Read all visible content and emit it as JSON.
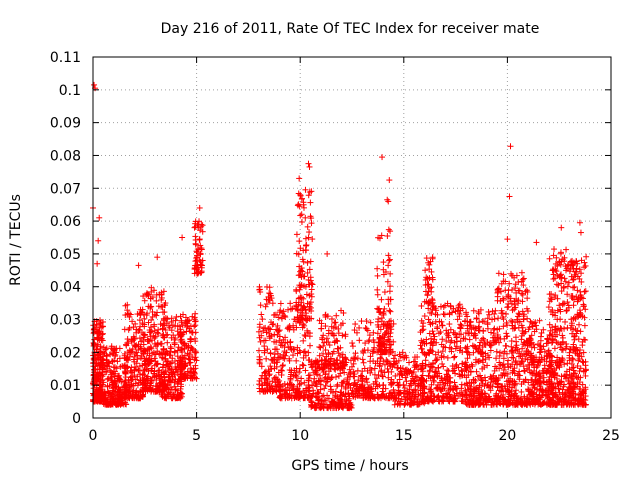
{
  "chart_data": {
    "type": "scatter",
    "title": "Day 216 of 2011, Rate Of TEC Index for receiver mate",
    "xlabel": "GPS time / hours",
    "ylabel": "ROTI / TECUs",
    "xlim": [
      0,
      25
    ],
    "ylim": [
      0,
      0.11
    ],
    "x_ticks": [
      0,
      5,
      10,
      15,
      20,
      25
    ],
    "x_tick_labels": [
      "0",
      "5",
      "10",
      "15",
      "20",
      "25"
    ],
    "y_ticks": [
      0,
      0.01,
      0.02,
      0.03,
      0.04,
      0.05,
      0.06,
      0.07,
      0.08,
      0.09,
      0.1,
      0.11
    ],
    "y_tick_labels": [
      "0",
      "0.01",
      "0.02",
      "0.03",
      "0.04",
      "0.05",
      "0.06",
      "0.07",
      "0.08",
      "0.09",
      "0.1",
      "0.11"
    ],
    "grid": true,
    "marker": "plus",
    "color": "#ff0000",
    "outliers": [
      {
        "x": 0.05,
        "y": 0.1015
      },
      {
        "x": 0.1,
        "y": 0.1005
      },
      {
        "x": 0.0,
        "y": 0.064
      },
      {
        "x": 0.3,
        "y": 0.061
      },
      {
        "x": 0.25,
        "y": 0.054
      },
      {
        "x": 0.2,
        "y": 0.047
      },
      {
        "x": 2.2,
        "y": 0.0465
      },
      {
        "x": 3.1,
        "y": 0.049
      },
      {
        "x": 4.3,
        "y": 0.055
      },
      {
        "x": 4.9,
        "y": 0.058
      },
      {
        "x": 5.15,
        "y": 0.064
      },
      {
        "x": 9.95,
        "y": 0.073
      },
      {
        "x": 10.4,
        "y": 0.0775
      },
      {
        "x": 10.45,
        "y": 0.0765
      },
      {
        "x": 10.0,
        "y": 0.068
      },
      {
        "x": 11.3,
        "y": 0.05
      },
      {
        "x": 13.95,
        "y": 0.0795
      },
      {
        "x": 14.3,
        "y": 0.0725
      },
      {
        "x": 14.2,
        "y": 0.0665
      },
      {
        "x": 14.25,
        "y": 0.066
      },
      {
        "x": 20.15,
        "y": 0.0828
      },
      {
        "x": 20.1,
        "y": 0.0675
      },
      {
        "x": 21.4,
        "y": 0.0535
      },
      {
        "x": 20.0,
        "y": 0.0545
      },
      {
        "x": 22.6,
        "y": 0.058
      },
      {
        "x": 23.5,
        "y": 0.0595
      },
      {
        "x": 23.55,
        "y": 0.0565
      }
    ],
    "clusters": [
      {
        "x_range": [
          0.0,
          0.5
        ],
        "y_range": [
          0.005,
          0.03
        ],
        "count": 220
      },
      {
        "x_range": [
          0.5,
          1.6
        ],
        "y_range": [
          0.004,
          0.022
        ],
        "count": 220
      },
      {
        "x_range": [
          1.5,
          2.5
        ],
        "y_range": [
          0.006,
          0.035
        ],
        "count": 200
      },
      {
        "x_range": [
          2.4,
          3.5
        ],
        "y_range": [
          0.008,
          0.04
        ],
        "count": 230
      },
      {
        "x_range": [
          3.3,
          4.3
        ],
        "y_range": [
          0.006,
          0.031
        ],
        "count": 200
      },
      {
        "x_range": [
          4.2,
          5.0
        ],
        "y_range": [
          0.012,
          0.032
        ],
        "count": 130
      },
      {
        "x_range": [
          4.9,
          5.3
        ],
        "y_range": [
          0.044,
          0.06
        ],
        "count": 60
      },
      {
        "x_range": [
          8.0,
          9.0
        ],
        "y_range": [
          0.008,
          0.04
        ],
        "count": 150
      },
      {
        "x_range": [
          9.0,
          10.5
        ],
        "y_range": [
          0.006,
          0.035
        ],
        "count": 220
      },
      {
        "x_range": [
          9.8,
          10.6
        ],
        "y_range": [
          0.03,
          0.07
        ],
        "count": 110
      },
      {
        "x_range": [
          10.5,
          12.5
        ],
        "y_range": [
          0.003,
          0.018
        ],
        "count": 240
      },
      {
        "x_range": [
          10.9,
          12.2
        ],
        "y_range": [
          0.015,
          0.033
        ],
        "count": 100
      },
      {
        "x_range": [
          12.5,
          14.6
        ],
        "y_range": [
          0.006,
          0.03
        ],
        "count": 240
      },
      {
        "x_range": [
          13.7,
          14.4
        ],
        "y_range": [
          0.02,
          0.058
        ],
        "count": 100
      },
      {
        "x_range": [
          14.5,
          16.0
        ],
        "y_range": [
          0.004,
          0.02
        ],
        "count": 180
      },
      {
        "x_range": [
          15.8,
          18.0
        ],
        "y_range": [
          0.005,
          0.035
        ],
        "count": 350
      },
      {
        "x_range": [
          16.0,
          16.4
        ],
        "y_range": [
          0.035,
          0.049
        ],
        "count": 35
      },
      {
        "x_range": [
          18.0,
          19.5
        ],
        "y_range": [
          0.004,
          0.033
        ],
        "count": 280
      },
      {
        "x_range": [
          19.5,
          21.0
        ],
        "y_range": [
          0.004,
          0.045
        ],
        "count": 330
      },
      {
        "x_range": [
          21.0,
          22.2
        ],
        "y_range": [
          0.004,
          0.03
        ],
        "count": 250
      },
      {
        "x_range": [
          22.0,
          23.0
        ],
        "y_range": [
          0.004,
          0.052
        ],
        "count": 250
      },
      {
        "x_range": [
          23.0,
          23.8
        ],
        "y_range": [
          0.004,
          0.05
        ],
        "count": 220
      }
    ]
  }
}
